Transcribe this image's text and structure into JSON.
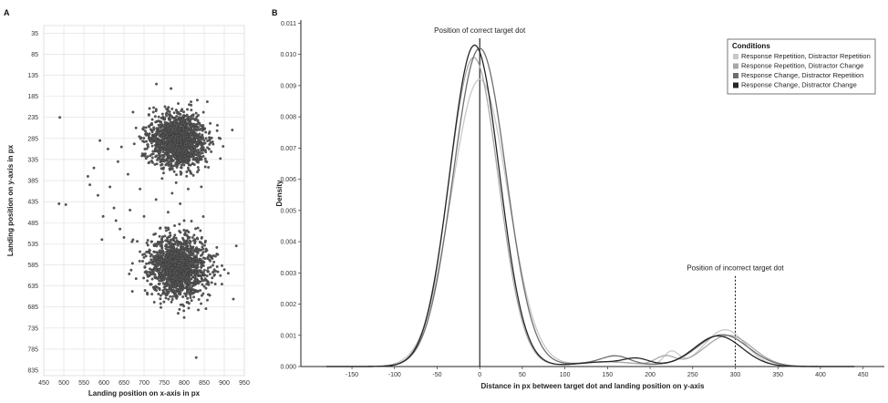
{
  "chart_data": [
    {
      "panel": "A",
      "type": "scatter",
      "xlabel": "Landing position on x-axis in px",
      "ylabel": "Landing position on y-axis in px",
      "xlim": [
        450,
        950
      ],
      "ylim": [
        835,
        35
      ],
      "y_inverted": true,
      "x_ticks": [
        450,
        500,
        550,
        600,
        650,
        700,
        750,
        800,
        850,
        900,
        950
      ],
      "y_ticks": [
        35,
        85,
        135,
        185,
        235,
        285,
        335,
        385,
        435,
        485,
        535,
        585,
        635,
        685,
        735,
        785,
        835
      ],
      "grid": true,
      "clusters": [
        {
          "center_x": 785,
          "center_y": 290,
          "sd_x": 35,
          "sd_y": 32,
          "n": 1500
        },
        {
          "center_x": 785,
          "center_y": 590,
          "sd_x": 38,
          "sd_y": 35,
          "n": 1500
        }
      ],
      "points": [
        {
          "x": 490,
          "y": 235
        },
        {
          "x": 488,
          "y": 440
        },
        {
          "x": 505,
          "y": 442
        },
        {
          "x": 560,
          "y": 375
        },
        {
          "x": 565,
          "y": 395
        },
        {
          "x": 575,
          "y": 355
        },
        {
          "x": 585,
          "y": 420
        },
        {
          "x": 590,
          "y": 290
        },
        {
          "x": 595,
          "y": 525
        },
        {
          "x": 598,
          "y": 470
        },
        {
          "x": 610,
          "y": 310
        },
        {
          "x": 615,
          "y": 400
        },
        {
          "x": 625,
          "y": 450
        },
        {
          "x": 630,
          "y": 480
        },
        {
          "x": 635,
          "y": 340
        },
        {
          "x": 640,
          "y": 500
        },
        {
          "x": 650,
          "y": 520
        },
        {
          "x": 660,
          "y": 370
        },
        {
          "x": 665,
          "y": 455
        },
        {
          "x": 680,
          "y": 260
        },
        {
          "x": 690,
          "y": 405
        },
        {
          "x": 700,
          "y": 470
        },
        {
          "x": 730,
          "y": 430
        },
        {
          "x": 745,
          "y": 380
        },
        {
          "x": 760,
          "y": 460
        },
        {
          "x": 770,
          "y": 415
        },
        {
          "x": 780,
          "y": 390
        },
        {
          "x": 790,
          "y": 440
        },
        {
          "x": 800,
          "y": 480
        },
        {
          "x": 810,
          "y": 405
        },
        {
          "x": 785,
          "y": 700
        },
        {
          "x": 800,
          "y": 710
        },
        {
          "x": 830,
          "y": 805
        },
        {
          "x": 930,
          "y": 540
        },
        {
          "x": 920,
          "y": 265
        },
        {
          "x": 910,
          "y": 605
        }
      ]
    },
    {
      "panel": "B",
      "type": "line",
      "xlabel": "Distance in px between target dot and landing position on y-axis",
      "ylabel": "Density",
      "xlim": [
        -210,
        475
      ],
      "ylim": [
        0,
        0.0111
      ],
      "x_ticks": [
        -150,
        -100,
        -50,
        0,
        50,
        100,
        150,
        200,
        250,
        300,
        350,
        400,
        450
      ],
      "y_ticks": [
        0.0,
        0.001,
        0.002,
        0.003,
        0.004,
        0.005,
        0.006,
        0.007,
        0.008,
        0.009,
        0.01,
        0.011
      ],
      "grid": false,
      "legend_position": "top-right",
      "legend_title": "Conditions",
      "series": [
        {
          "name": "Response Repetition, Distractor Repetition",
          "color": "#c8c8c8",
          "peak_height": 0.0092,
          "peak_x": 0,
          "peak_sd": 33,
          "bump_height": 0.00118,
          "bump_x": 288,
          "bump_sd": 24,
          "bump2_height": 0.00045,
          "bump2_x": 225,
          "bump2_sd": 9
        },
        {
          "name": "Response Repetition, Distractor Change",
          "color": "#a8a8a8",
          "peak_height": 0.0099,
          "peak_x": -7,
          "peak_sd": 29,
          "bump_height": 0.001,
          "bump_x": 292,
          "bump_sd": 28,
          "bump2_height": 0.0003,
          "bump2_x": 218,
          "bump2_sd": 12
        },
        {
          "name": "Response Change, Distractor Repetition",
          "color": "#6e6e6e",
          "peak_height": 0.0102,
          "peak_x": 0,
          "peak_sd": 31,
          "bump_height": 0.00102,
          "bump_x": 285,
          "bump_sd": 30,
          "bump2_height": 0.0002,
          "bump2_x": 160,
          "bump2_sd": 15
        },
        {
          "name": "Response Change, Distractor Change",
          "color": "#262626",
          "peak_height": 0.0103,
          "peak_x": -6,
          "peak_sd": 29,
          "bump_height": 0.00098,
          "bump_x": 280,
          "bump_sd": 28,
          "bump2_height": 0.00018,
          "bump2_x": 185,
          "bump2_sd": 14
        }
      ],
      "reference_lines": [
        {
          "x": 0,
          "style": "solid",
          "label": "Position of correct target dot"
        },
        {
          "x": 300,
          "style": "dotted",
          "label": "Position of incorrect target dot"
        }
      ]
    }
  ],
  "panel_labels": {
    "a": "A",
    "b": "B"
  }
}
